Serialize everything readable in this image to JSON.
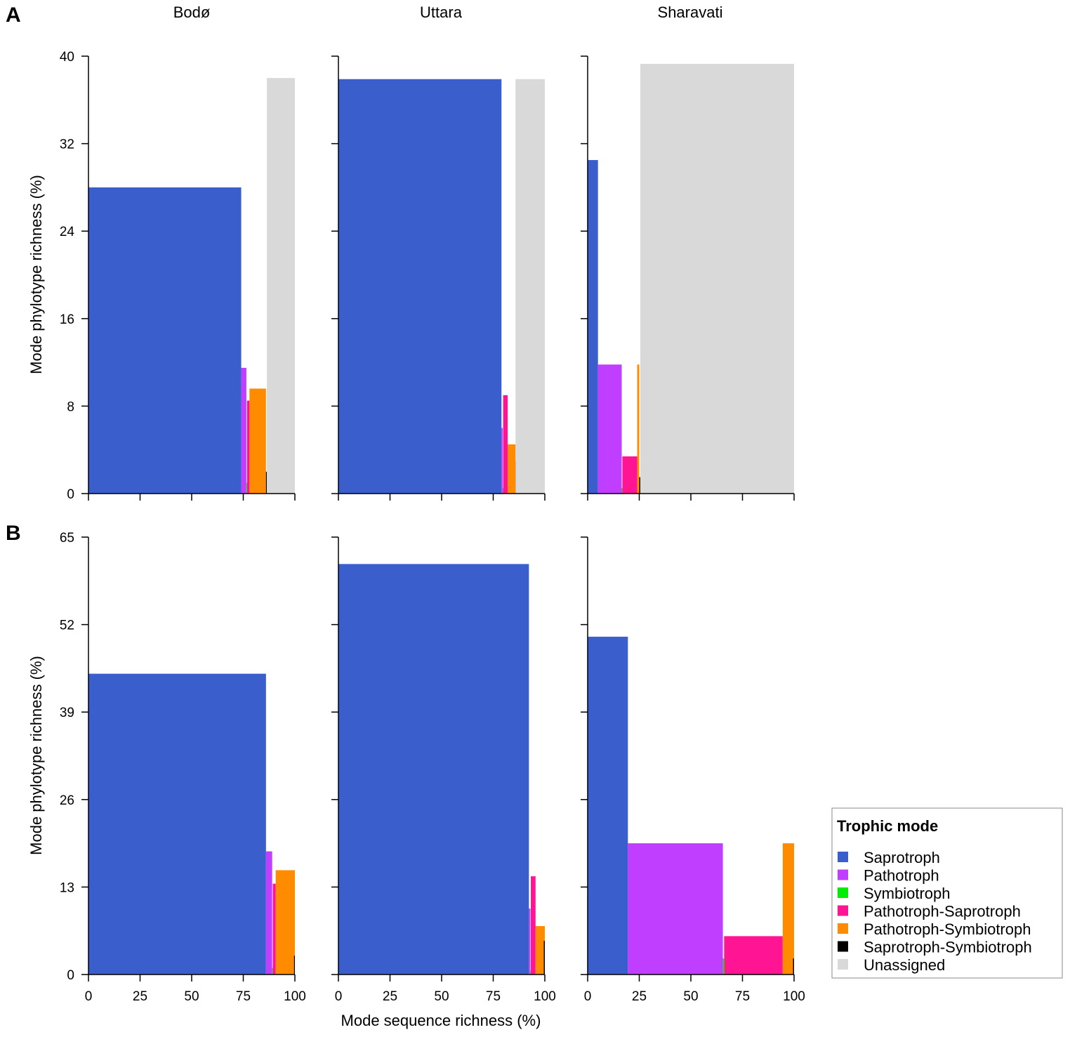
{
  "panel_letters": [
    "A",
    "B"
  ],
  "site_titles": [
    "Bodø",
    "Uttara",
    "Sharavati"
  ],
  "legend": {
    "title": "Trophic mode",
    "items": [
      {
        "label": "Saprotroph",
        "color": "#3a5fcd"
      },
      {
        "label": "Pathotroph",
        "color": "#bf3eff"
      },
      {
        "label": "Symbiotroph",
        "color": "#00ee00"
      },
      {
        "label": "Pathotroph-Saprotroph",
        "color": "#ff1493"
      },
      {
        "label": "Pathotroph-Symbiotroph",
        "color": "#ff8c00"
      },
      {
        "label": "Saprotroph-Symbiotroph",
        "color": "#000000"
      },
      {
        "label": "Unassigned",
        "color": "#d9d9d9"
      }
    ]
  },
  "chart_data": [
    {
      "type": "bar",
      "panel": "A",
      "title": "Bodø",
      "xlabel": "Mode sequence richness (%)",
      "ylabel": "Mode phylotype richness (%)",
      "xlim": [
        0,
        100
      ],
      "ylim": [
        0,
        40
      ],
      "yticks": [
        0,
        8,
        16,
        24,
        32,
        40
      ],
      "xticks": [
        0,
        25,
        50,
        75,
        100
      ],
      "bars": [
        {
          "mode": "Saprotroph",
          "x_start": 0,
          "width": 74,
          "y": 28
        },
        {
          "mode": "Pathotroph",
          "x_start": 74,
          "width": 2.5,
          "y": 11.5
        },
        {
          "mode": "Symbiotroph",
          "x_start": 76.5,
          "width": 0.3,
          "y": 1
        },
        {
          "mode": "Pathotroph-Saprotroph",
          "x_start": 76.8,
          "width": 1.2,
          "y": 8.5
        },
        {
          "mode": "Pathotroph-Symbiotroph",
          "x_start": 78,
          "width": 8,
          "y": 9.6
        },
        {
          "mode": "Saprotroph-Symbiotroph",
          "x_start": 86,
          "width": 0.4,
          "y": 2
        },
        {
          "mode": "Unassigned",
          "x_start": 86.4,
          "width": 13.6,
          "y": 38
        }
      ]
    },
    {
      "type": "bar",
      "panel": "A",
      "title": "Uttara",
      "xlabel": "Mode sequence richness (%)",
      "ylabel": "",
      "xlim": [
        0,
        100
      ],
      "ylim": [
        0,
        40
      ],
      "yticks": [
        0,
        8,
        16,
        24,
        32,
        40
      ],
      "xticks": [
        0,
        25,
        50,
        75,
        100
      ],
      "bars": [
        {
          "mode": "Saprotroph",
          "x_start": 0,
          "width": 79,
          "y": 37.9
        },
        {
          "mode": "Pathotroph",
          "x_start": 79,
          "width": 0.6,
          "y": 6
        },
        {
          "mode": "Symbiotroph",
          "x_start": 79.6,
          "width": 0.2,
          "y": 0.5
        },
        {
          "mode": "Pathotroph-Saprotroph",
          "x_start": 79.8,
          "width": 2.2,
          "y": 9
        },
        {
          "mode": "Pathotroph-Symbiotroph",
          "x_start": 82,
          "width": 3.8,
          "y": 4.5
        },
        {
          "mode": "Saprotroph-Symbiotroph",
          "x_start": 85.8,
          "width": 0.4,
          "y": 3
        },
        {
          "mode": "Unassigned",
          "x_start": 85.8,
          "width": 14.2,
          "y": 37.9
        }
      ]
    },
    {
      "type": "bar",
      "panel": "A",
      "title": "Sharavati",
      "xlabel": "Mode sequence richness (%)",
      "ylabel": "",
      "xlim": [
        0,
        100
      ],
      "ylim": [
        0,
        40
      ],
      "yticks": [
        0,
        8,
        16,
        24,
        32,
        40
      ],
      "xticks": [
        0,
        25,
        50,
        75,
        100
      ],
      "bars": [
        {
          "mode": "Saprotroph",
          "x_start": 0,
          "width": 5,
          "y": 30.5
        },
        {
          "mode": "Pathotroph",
          "x_start": 5,
          "width": 11.5,
          "y": 11.8
        },
        {
          "mode": "Symbiotroph",
          "x_start": 16.5,
          "width": 0.3,
          "y": 0.5
        },
        {
          "mode": "Pathotroph-Saprotroph",
          "x_start": 16.8,
          "width": 7.2,
          "y": 3.4
        },
        {
          "mode": "Pathotroph-Symbiotroph",
          "x_start": 24,
          "width": 1,
          "y": 11.8
        },
        {
          "mode": "Saprotroph-Symbiotroph",
          "x_start": 25,
          "width": 0.5,
          "y": 1.5
        },
        {
          "mode": "Unassigned",
          "x_start": 25.5,
          "width": 74.5,
          "y": 39.3
        }
      ]
    },
    {
      "type": "bar",
      "panel": "B",
      "title": "Bodø",
      "xlabel": "Mode sequence richness (%)",
      "ylabel": "Mode phylotype richness (%)",
      "xlim": [
        0,
        100
      ],
      "ylim": [
        0,
        65
      ],
      "yticks": [
        0,
        13,
        26,
        39,
        52,
        65
      ],
      "xticks": [
        0,
        25,
        50,
        75,
        100
      ],
      "bars": [
        {
          "mode": "Saprotroph",
          "x_start": 0,
          "width": 86,
          "y": 44.7
        },
        {
          "mode": "Pathotroph",
          "x_start": 86,
          "width": 3,
          "y": 18.3
        },
        {
          "mode": "Symbiotroph",
          "x_start": 89,
          "width": 0.3,
          "y": 1
        },
        {
          "mode": "Pathotroph-Saprotroph",
          "x_start": 89.3,
          "width": 1.4,
          "y": 13.5
        },
        {
          "mode": "Pathotroph-Symbiotroph",
          "x_start": 90.7,
          "width": 9.3,
          "y": 15.5
        },
        {
          "mode": "Saprotroph-Symbiotroph",
          "x_start": 99.6,
          "width": 0.4,
          "y": 2.8
        }
      ]
    },
    {
      "type": "bar",
      "panel": "B",
      "title": "Uttara",
      "xlabel": "Mode sequence richness (%)",
      "ylabel": "",
      "xlim": [
        0,
        100
      ],
      "ylim": [
        0,
        65
      ],
      "yticks": [
        0,
        13,
        26,
        39,
        52,
        65
      ],
      "xticks": [
        0,
        25,
        50,
        75,
        100
      ],
      "bars": [
        {
          "mode": "Saprotroph",
          "x_start": 0,
          "width": 92.3,
          "y": 61
        },
        {
          "mode": "Pathotroph",
          "x_start": 92.3,
          "width": 0.7,
          "y": 9.8
        },
        {
          "mode": "Symbiotroph",
          "x_start": 93,
          "width": 0.2,
          "y": 0.5
        },
        {
          "mode": "Pathotroph-Saprotroph",
          "x_start": 93.2,
          "width": 2.3,
          "y": 14.6
        },
        {
          "mode": "Pathotroph-Symbiotroph",
          "x_start": 95.5,
          "width": 4.5,
          "y": 7.2
        },
        {
          "mode": "Saprotroph-Symbiotroph",
          "x_start": 99.5,
          "width": 0.5,
          "y": 5
        }
      ]
    },
    {
      "type": "bar",
      "panel": "B",
      "title": "Sharavati",
      "xlabel": "Mode sequence richness (%)",
      "ylabel": "",
      "xlim": [
        0,
        100
      ],
      "ylim": [
        0,
        65
      ],
      "yticks": [
        0,
        13,
        26,
        39,
        52,
        65
      ],
      "xticks": [
        0,
        25,
        50,
        75,
        100
      ],
      "bars": [
        {
          "mode": "Saprotroph",
          "x_start": 0,
          "width": 19.5,
          "y": 50.2
        },
        {
          "mode": "Pathotroph",
          "x_start": 19.5,
          "width": 46,
          "y": 19.5
        },
        {
          "mode": "Symbiotroph",
          "x_start": 65.5,
          "width": 0.6,
          "y": 2.4
        },
        {
          "mode": "Pathotroph-Saprotroph",
          "x_start": 66.1,
          "width": 28.4,
          "y": 5.7
        },
        {
          "mode": "Pathotroph-Symbiotroph",
          "x_start": 94.5,
          "width": 5.5,
          "y": 19.5
        },
        {
          "mode": "Saprotroph-Symbiotroph",
          "x_start": 99.5,
          "width": 0.5,
          "y": 2.4
        }
      ]
    }
  ]
}
